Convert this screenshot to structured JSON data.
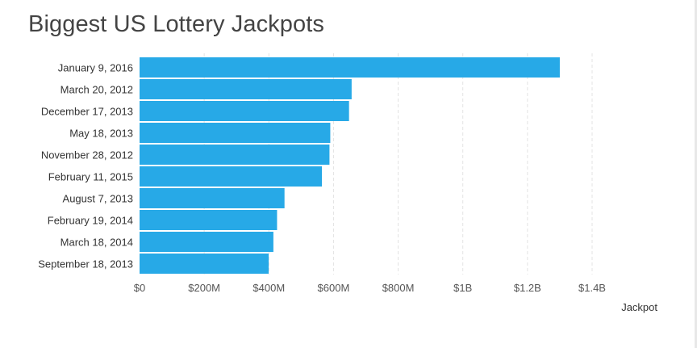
{
  "title": "Biggest US Lottery Jackpots",
  "colors": {
    "bar": "#27a9e7",
    "grid": "#e3e3e3",
    "title": "#444444"
  },
  "chart_data": {
    "type": "bar",
    "orientation": "horizontal",
    "title": "Biggest US Lottery Jackpots",
    "xlabel": "Jackpot",
    "ylabel": "",
    "xlim": [
      0,
      1400000000
    ],
    "x_ticks": [
      {
        "value": 0,
        "label": "$0"
      },
      {
        "value": 200000000,
        "label": "$200M"
      },
      {
        "value": 400000000,
        "label": "$400M"
      },
      {
        "value": 600000000,
        "label": "$600M"
      },
      {
        "value": 800000000,
        "label": "$800M"
      },
      {
        "value": 1000000000,
        "label": "$1B"
      },
      {
        "value": 1200000000,
        "label": "$1.2B"
      },
      {
        "value": 1400000000,
        "label": "$1.4B"
      }
    ],
    "grid": true,
    "categories": [
      "January 9, 2016",
      "March 20, 2012",
      "December 17, 2013",
      "May 18, 2013",
      "November 28, 2012",
      "February 11, 2015",
      "August 7, 2013",
      "February 19, 2014",
      "March 18, 2014",
      "September 18, 2013"
    ],
    "values": [
      1300000000,
      656000000,
      648000000,
      590000000,
      587500000,
      564100000,
      448400000,
      425300000,
      414000000,
      399400000
    ]
  }
}
